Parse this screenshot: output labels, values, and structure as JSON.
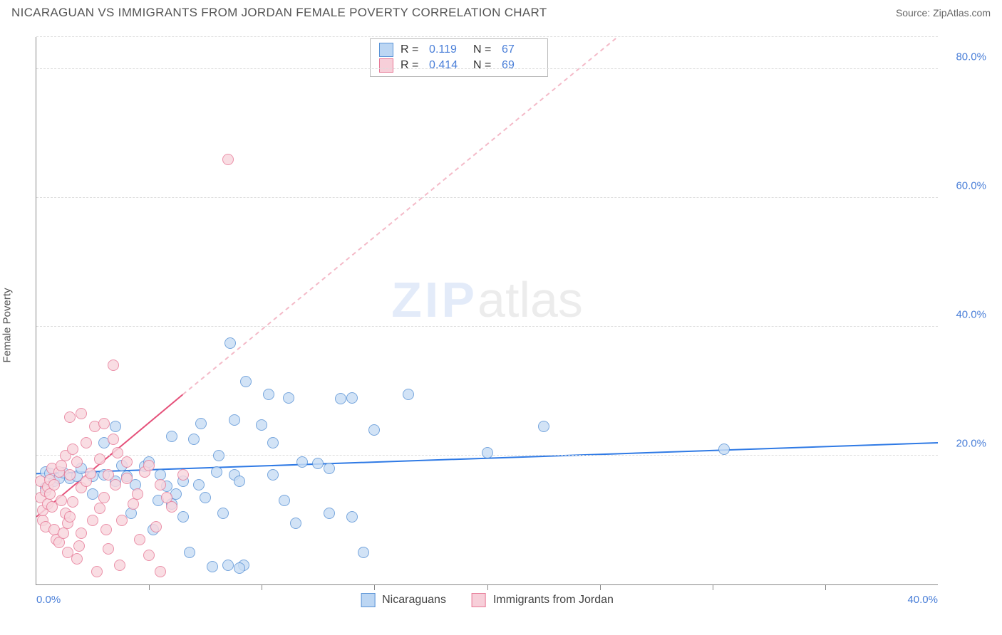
{
  "title": "NICARAGUAN VS IMMIGRANTS FROM JORDAN FEMALE POVERTY CORRELATION CHART",
  "source": "Source: ZipAtlas.com",
  "ylabel": "Female Poverty",
  "watermark": {
    "part1": "ZIP",
    "part2": "atlas"
  },
  "chart": {
    "type": "scatter",
    "xlim": [
      0,
      40
    ],
    "ylim": [
      0,
      85
    ],
    "x_ticks": [
      0,
      10,
      20,
      30,
      40
    ],
    "x_tick_labels": [
      "0.0%",
      null,
      null,
      null,
      "40.0%"
    ],
    "x_inner_ticks": [
      5,
      10,
      15,
      20,
      25,
      30,
      35
    ],
    "y_gridlines": [
      20,
      40,
      60,
      80,
      85
    ],
    "y_tick_labels": [
      "20.0%",
      "40.0%",
      "60.0%",
      "80.0%",
      null
    ],
    "grid_color": "#dddddd",
    "axis_color": "#888888",
    "background": "#ffffff",
    "marker_radius": 8,
    "marker_stroke_width": 1.2,
    "series": [
      {
        "name": "Nicaraguans",
        "fill": "#c9def5",
        "stroke": "#5a93d6",
        "swatch_fill": "#bcd6f3",
        "swatch_stroke": "#5a93d6",
        "R": "0.119",
        "N": "67",
        "trend": {
          "solid_from": [
            0,
            17.2
          ],
          "solid_to": [
            40,
            22.0
          ],
          "color": "#2f7ae5",
          "width": 2
        },
        "points": [
          [
            0.4,
            17.5
          ],
          [
            0.4,
            15.0
          ],
          [
            0.8,
            16.0
          ],
          [
            0.6,
            17.2
          ],
          [
            1.0,
            16.5
          ],
          [
            1.2,
            17.4
          ],
          [
            1.5,
            16.5
          ],
          [
            1.8,
            16.8
          ],
          [
            2.0,
            18.0
          ],
          [
            2.5,
            14.0
          ],
          [
            2.5,
            16.8
          ],
          [
            3.0,
            17.0
          ],
          [
            3.0,
            22.0
          ],
          [
            3.5,
            24.5
          ],
          [
            3.8,
            18.5
          ],
          [
            3.5,
            16.0
          ],
          [
            4.0,
            16.8
          ],
          [
            4.2,
            11.0
          ],
          [
            4.4,
            15.5
          ],
          [
            4.8,
            18.4
          ],
          [
            5.0,
            19.0
          ],
          [
            5.2,
            8.5
          ],
          [
            5.4,
            13.0
          ],
          [
            5.5,
            17.0
          ],
          [
            5.8,
            15.3
          ],
          [
            6.0,
            12.5
          ],
          [
            6.0,
            23.0
          ],
          [
            6.5,
            16.0
          ],
          [
            6.2,
            14.0
          ],
          [
            6.5,
            10.5
          ],
          [
            7.0,
            22.5
          ],
          [
            7.3,
            25.0
          ],
          [
            7.2,
            15.5
          ],
          [
            7.5,
            13.5
          ],
          [
            7.8,
            2.8
          ],
          [
            8.0,
            17.5
          ],
          [
            8.1,
            20.0
          ],
          [
            8.3,
            11.0
          ],
          [
            8.5,
            3.0
          ],
          [
            8.6,
            37.5
          ],
          [
            8.8,
            17.0
          ],
          [
            8.8,
            25.5
          ],
          [
            9.0,
            16.0
          ],
          [
            9.3,
            31.5
          ],
          [
            9.2,
            3.0
          ],
          [
            10.0,
            24.8
          ],
          [
            10.5,
            22.0
          ],
          [
            10.5,
            17.0
          ],
          [
            10.3,
            29.5
          ],
          [
            11.0,
            13.0
          ],
          [
            11.2,
            29.0
          ],
          [
            11.5,
            9.5
          ],
          [
            11.8,
            19.0
          ],
          [
            12.5,
            18.8
          ],
          [
            13.0,
            11.0
          ],
          [
            13.5,
            28.8
          ],
          [
            14.0,
            10.5
          ],
          [
            14.5,
            5.0
          ],
          [
            15.0,
            24.0
          ],
          [
            20.0,
            20.5
          ],
          [
            30.5,
            21.0
          ],
          [
            22.5,
            24.5
          ],
          [
            16.5,
            29.5
          ],
          [
            14.0,
            29.0
          ],
          [
            13.0,
            18.0
          ],
          [
            9.0,
            2.5
          ],
          [
            6.8,
            5.0
          ]
        ]
      },
      {
        "name": "Immigrants from Jordan",
        "fill": "#f8d6de",
        "stroke": "#e77a97",
        "swatch_fill": "#f7cfd9",
        "swatch_stroke": "#e77a97",
        "R": "0.414",
        "N": "69",
        "trend": {
          "solid_from": [
            0,
            10.5
          ],
          "solid_to": [
            6.5,
            29.5
          ],
          "dash_to": [
            31.0,
            100.0
          ],
          "color": "#e5517a",
          "dash_color": "#f4bac8",
          "width": 2
        },
        "points": [
          [
            0.2,
            13.5
          ],
          [
            0.2,
            16.0
          ],
          [
            0.3,
            10.0
          ],
          [
            0.3,
            11.5
          ],
          [
            0.4,
            14.5
          ],
          [
            0.4,
            9.0
          ],
          [
            0.5,
            12.5
          ],
          [
            0.5,
            15.2
          ],
          [
            0.6,
            16.3
          ],
          [
            0.6,
            14.0
          ],
          [
            0.7,
            18.0
          ],
          [
            0.7,
            12.0
          ],
          [
            0.8,
            8.5
          ],
          [
            0.8,
            15.5
          ],
          [
            0.9,
            7.0
          ],
          [
            1.0,
            17.5
          ],
          [
            1.0,
            6.5
          ],
          [
            1.1,
            13.0
          ],
          [
            1.1,
            18.5
          ],
          [
            1.2,
            8.0
          ],
          [
            1.3,
            11.0
          ],
          [
            1.3,
            20.0
          ],
          [
            1.4,
            9.5
          ],
          [
            1.4,
            5.0
          ],
          [
            1.5,
            17.0
          ],
          [
            1.5,
            10.5
          ],
          [
            1.6,
            21.0
          ],
          [
            1.6,
            12.8
          ],
          [
            1.8,
            4.0
          ],
          [
            1.8,
            19.0
          ],
          [
            1.9,
            6.0
          ],
          [
            2.0,
            15.0
          ],
          [
            2.0,
            8.0
          ],
          [
            2.0,
            26.5
          ],
          [
            2.2,
            16.0
          ],
          [
            2.2,
            22.0
          ],
          [
            2.4,
            17.3
          ],
          [
            2.5,
            10.0
          ],
          [
            2.6,
            24.5
          ],
          [
            2.8,
            11.8
          ],
          [
            2.8,
            19.5
          ],
          [
            3.0,
            25.0
          ],
          [
            3.0,
            13.5
          ],
          [
            3.1,
            8.5
          ],
          [
            3.2,
            17.0
          ],
          [
            3.2,
            5.5
          ],
          [
            3.4,
            34.0
          ],
          [
            3.5,
            15.5
          ],
          [
            3.6,
            20.5
          ],
          [
            3.7,
            3.0
          ],
          [
            3.8,
            10.0
          ],
          [
            4.0,
            16.5
          ],
          [
            4.0,
            19.0
          ],
          [
            4.3,
            12.5
          ],
          [
            4.5,
            14.0
          ],
          [
            4.6,
            7.0
          ],
          [
            4.8,
            17.5
          ],
          [
            5.0,
            4.5
          ],
          [
            5.0,
            18.5
          ],
          [
            5.3,
            9.0
          ],
          [
            5.5,
            2.0
          ],
          [
            5.5,
            15.5
          ],
          [
            5.8,
            13.5
          ],
          [
            6.0,
            12.0
          ],
          [
            6.5,
            17.0
          ],
          [
            1.5,
            26.0
          ],
          [
            2.7,
            2.0
          ],
          [
            3.4,
            22.5
          ],
          [
            8.5,
            66.0
          ]
        ]
      }
    ]
  },
  "bottom_legend": [
    {
      "label": "Nicaraguans",
      "series": 0
    },
    {
      "label": "Immigrants from Jordan",
      "series": 1
    }
  ]
}
